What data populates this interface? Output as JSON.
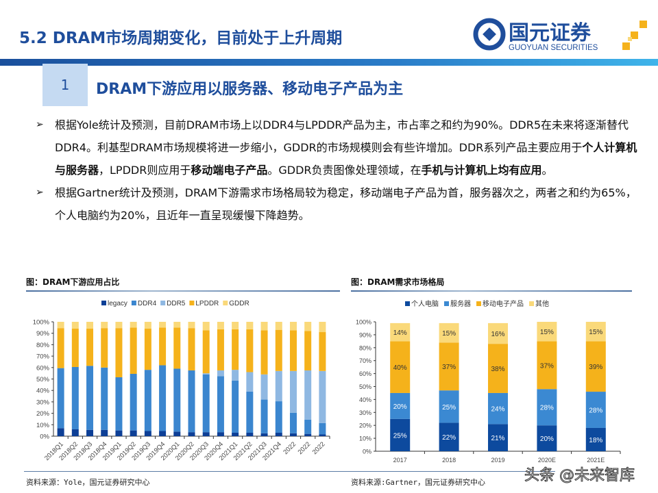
{
  "header": {
    "title": "5.2 DRAM市场周期变化，目前处于上升周期",
    "logo_cn": "国元证券",
    "logo_en": "GUOYUAN SECURITIES",
    "section_number": "1",
    "section_title": "DRAM下游应用以服务器、移动电子产品为主",
    "brand_color": "#1f4e9c",
    "accent_color": "#f5b21b"
  },
  "bullets": [
    {
      "parts": [
        {
          "text": "根据Yole统计及预测，目前DRAM市场上以DDR4与LPDDR产品为主，市占率之和约为90%。DDR5在未来将逐渐替代DDR4。利基型DRAM市场规模将进一步缩小，GDDR的市场规模则会有些许增加。DDR系列产品主要应用于",
          "bold": false
        },
        {
          "text": "个人计算机与服务器",
          "bold": true
        },
        {
          "text": "，LPDDR则应用于",
          "bold": false
        },
        {
          "text": "移动端电子产品",
          "bold": true
        },
        {
          "text": "。GDDR负责图像处理领域，在",
          "bold": false
        },
        {
          "text": "手机与计算机上均有应用",
          "bold": true
        },
        {
          "text": "。",
          "bold": false
        }
      ]
    },
    {
      "parts": [
        {
          "text": "根据Gartner统计及预测，DRAM下游需求市场格局较为稳定，移动端电子产品为首，服务器次之，两者之和约为65%，个人电脑约为20%，且近年一直呈现缓慢下降趋势。",
          "bold": false
        }
      ]
    }
  ],
  "bullet_icon": "arrow-right-icon",
  "chart_data": [
    {
      "type": "bar",
      "stacked": true,
      "title": "图：DRAM下游应用占比",
      "source": "资料来源：Yole，国元证券研究中心",
      "legend_position": "top",
      "ylim": [
        0,
        100
      ],
      "yticks": [
        "0%",
        "10%",
        "20%",
        "30%",
        "40%",
        "50%",
        "60%",
        "70%",
        "80%",
        "90%",
        "100%"
      ],
      "categories": [
        "2018Q1",
        "2018Q2",
        "2018Q3",
        "2018Q4",
        "2019Q1",
        "2019Q2",
        "2019Q3",
        "2019Q4",
        "2020Q1",
        "2020Q2",
        "2020Q3",
        "2020Q4",
        "2021Q1",
        "2021Q2",
        "2021Q3",
        "2021Q4",
        "2022",
        "2022",
        "2022"
      ],
      "series": [
        {
          "name": "legacy",
          "color": "#0d3f96",
          "values": [
            7,
            6,
            5.5,
            5.5,
            5,
            5,
            4.5,
            4.5,
            4,
            3.5,
            3.5,
            3.5,
            3,
            3,
            2.5,
            3,
            2.5,
            2,
            1.5
          ]
        },
        {
          "name": "DDR4",
          "color": "#3b86cf",
          "values": [
            52.5,
            54.5,
            56,
            54.5,
            46.5,
            49.5,
            53.5,
            57.5,
            55,
            54,
            50.5,
            49,
            45.5,
            36,
            29.5,
            27.5,
            18,
            12.5,
            10
          ]
        },
        {
          "name": "DDR5",
          "color": "#8fb8e2",
          "values": [
            0,
            0,
            0,
            0,
            0,
            0,
            0,
            0,
            0,
            0,
            1,
            5,
            9.5,
            17,
            22,
            26.5,
            36.5,
            43,
            45.5
          ]
        },
        {
          "name": "LPDDR",
          "color": "#f5b21b",
          "values": [
            35,
            33.5,
            32.5,
            34.5,
            43,
            40.5,
            36,
            33,
            36,
            37,
            37.5,
            36,
            35.5,
            37.5,
            38.5,
            36,
            35.5,
            34.5,
            34
          ]
        },
        {
          "name": "GDDR",
          "color": "#fad97a",
          "values": [
            5.5,
            6,
            6,
            5.5,
            5.5,
            5,
            6,
            5,
            5,
            5.5,
            7.5,
            6.5,
            6.5,
            6.5,
            7.5,
            7,
            7.5,
            8,
            9
          ]
        }
      ]
    },
    {
      "type": "bar",
      "stacked": true,
      "title": "图：DRAM需求市场格局",
      "source": "资料来源:Gartner，国元证券研究中心",
      "legend_position": "top",
      "ylim": [
        0,
        100
      ],
      "yticks": [
        "0%",
        "10%",
        "20%",
        "30%",
        "40%",
        "50%",
        "60%",
        "70%",
        "80%",
        "90%",
        "100%"
      ],
      "categories": [
        "2017",
        "2018",
        "2019",
        "2020E",
        "2021E"
      ],
      "series": [
        {
          "name": "个人电脑",
          "color": "#0d4a9e",
          "label_color": "#ffffff",
          "values": [
            25,
            22,
            21,
            20,
            18
          ],
          "labels": [
            "25%",
            "22%",
            "21%",
            "20%",
            "18%"
          ]
        },
        {
          "name": "服务器",
          "color": "#3b89d2",
          "label_color": "#ffffff",
          "values": [
            20,
            25,
            24,
            28,
            28
          ],
          "labels": [
            "20%",
            "25%",
            "24%",
            "28%",
            "28%"
          ]
        },
        {
          "name": "移动电子产品",
          "color": "#f5b21b",
          "label_color": "#333333",
          "values": [
            40,
            37,
            38,
            37,
            39
          ],
          "labels": [
            "40%",
            "37%",
            "38%",
            "37%",
            "39%"
          ]
        },
        {
          "name": "其他",
          "color": "#fad97a",
          "label_color": "#333333",
          "values": [
            14,
            15,
            16,
            15,
            15
          ],
          "labels": [
            "14%",
            "15%",
            "16%",
            "15%",
            "15%"
          ]
        }
      ]
    }
  ],
  "watermark": "头条 @未来智库"
}
